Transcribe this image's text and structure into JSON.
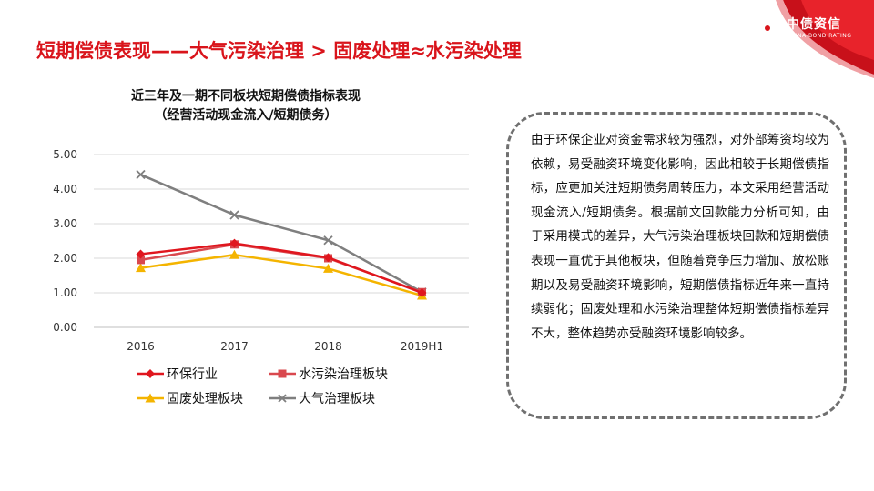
{
  "brand": {
    "name_cn": "中债资信",
    "name_en": "CHINA BOND RATING",
    "accent_color": "#d9141b"
  },
  "page_title": "短期偿债表现——大气污染治理 > 固废处理≈水污染处理",
  "chart_data": {
    "type": "line",
    "title_line1": "近三年及一期不同板块短期偿债指标表现",
    "title_line2": "（经营活动现金流入/短期债务）",
    "categories": [
      "2016",
      "2017",
      "2018",
      "2019H1"
    ],
    "ylim": [
      0,
      5
    ],
    "yticks": [
      "0.00",
      "1.00",
      "2.00",
      "3.00",
      "4.00",
      "5.00"
    ],
    "grid": true,
    "legend_position": "bottom",
    "series": [
      {
        "name": "环保行业",
        "values": [
          2.12,
          2.43,
          2.02,
          1.0
        ],
        "color": "#e0161e",
        "marker": "diamond"
      },
      {
        "name": "水污染治理板块",
        "values": [
          1.95,
          2.4,
          2.0,
          1.02
        ],
        "color": "#d9484e",
        "marker": "square"
      },
      {
        "name": "固废处理板块",
        "values": [
          1.72,
          2.1,
          1.7,
          0.92
        ],
        "color": "#f4b400",
        "marker": "triangle"
      },
      {
        "name": "大气治理板块",
        "values": [
          4.42,
          3.25,
          2.52,
          1.02
        ],
        "color": "#7f7f7f",
        "marker": "x"
      }
    ]
  },
  "note_text": "由于环保企业对资金需求较为强烈，对外部筹资均较为依赖，易受融资环境变化影响，因此相较于长期偿债指标，应更加关注短期债务周转压力，本文采用经营活动现金流入/短期债务。根据前文回款能力分析可知，由于采用模式的差异，大气污染治理板块回款和短期偿债表现一直优于其他板块，但随着竞争压力增加、放松账期以及易受融资环境影响，短期偿债指标近年来一直持续弱化；固废处理和水污染治理整体短期偿债指标差异不大，整体趋势亦受融资环境影响较多。"
}
